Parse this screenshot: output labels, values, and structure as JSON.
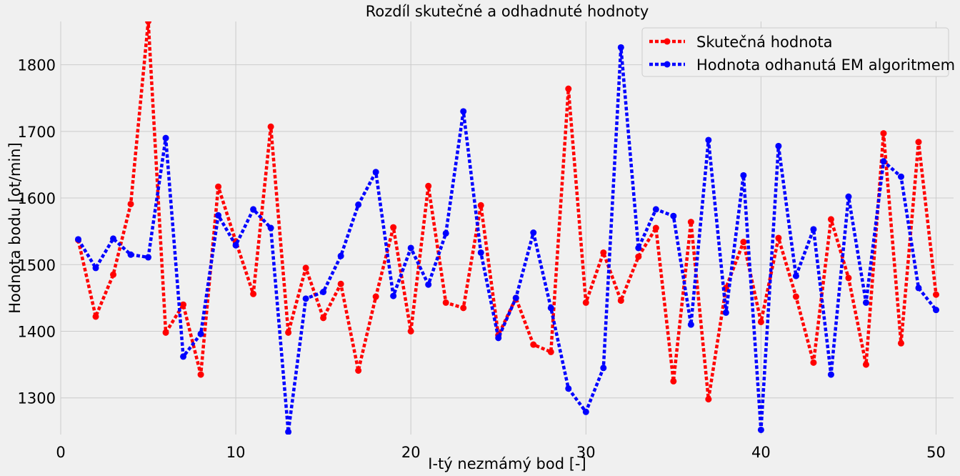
{
  "chart_data": {
    "type": "line",
    "title": "Rozdíl skutečné a odhadnuté hodnoty",
    "xlabel": "I-tý nezmámý bod [-]",
    "ylabel": "Hodnota bodu [ot/min]",
    "xlim": [
      0,
      51
    ],
    "ylim": [
      1245,
      1865
    ],
    "xticks": [
      0,
      10,
      20,
      30,
      40,
      50
    ],
    "yticks": [
      1300,
      1400,
      1500,
      1600,
      1700,
      1800
    ],
    "grid": true,
    "legend_position": "top-right",
    "x": [
      1,
      2,
      3,
      4,
      5,
      6,
      7,
      8,
      9,
      10,
      11,
      12,
      13,
      14,
      15,
      16,
      17,
      18,
      19,
      20,
      21,
      22,
      23,
      24,
      25,
      26,
      27,
      28,
      29,
      30,
      31,
      32,
      33,
      34,
      35,
      36,
      37,
      38,
      39,
      40,
      41,
      42,
      43,
      44,
      45,
      46,
      47,
      48,
      49,
      50
    ],
    "series": [
      {
        "name": "Skutečná hodnota",
        "color": "#ff0000",
        "values": [
          1537,
          1422,
          1485,
          1591,
          1865,
          1398,
          1440,
          1335,
          1617,
          1535,
          1456,
          1707,
          1398,
          1495,
          1420,
          1471,
          1341,
          1452,
          1556,
          1400,
          1618,
          1443,
          1435,
          1589,
          1394,
          1450,
          1380,
          1369,
          1764,
          1443,
          1518,
          1446,
          1512,
          1555,
          1325,
          1564,
          1298,
          1465,
          1534,
          1414,
          1540,
          1452,
          1353,
          1568,
          1480,
          1350,
          1697,
          1382,
          1684,
          1455
        ]
      },
      {
        "name": "Hodnota odhanutá EM algoritmem",
        "color": "#0000ff",
        "values": [
          1538,
          1495,
          1539,
          1515,
          1511,
          1690,
          1362,
          1396,
          1574,
          1529,
          1583,
          1555,
          1249,
          1449,
          1459,
          1513,
          1590,
          1639,
          1453,
          1525,
          1470,
          1547,
          1730,
          1518,
          1390,
          1450,
          1548,
          1435,
          1314,
          1279,
          1345,
          1826,
          1525,
          1583,
          1573,
          1410,
          1687,
          1428,
          1634,
          1252,
          1678,
          1483,
          1553,
          1335,
          1602,
          1443,
          1655,
          1632,
          1465,
          1432
        ]
      }
    ]
  }
}
